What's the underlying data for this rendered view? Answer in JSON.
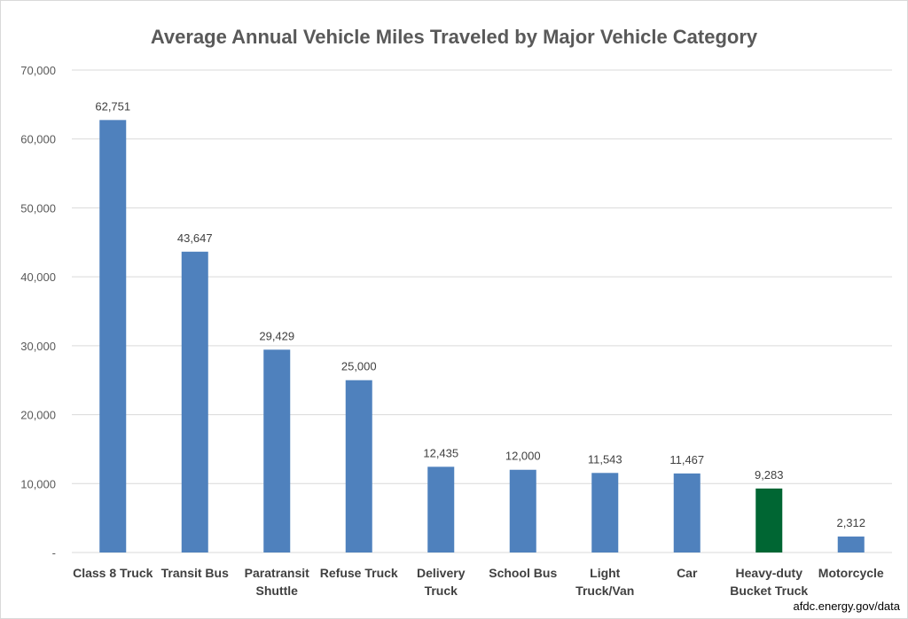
{
  "chart_data": {
    "type": "bar",
    "title": "Average Annual Vehicle Miles Traveled by Major Vehicle Category",
    "categories": [
      "Class 8 Truck",
      "Transit Bus",
      "Paratransit Shuttle",
      "Refuse Truck",
      "Delivery Truck",
      "School Bus",
      "Light Truck/Van",
      "Car",
      "Heavy-duty Bucket Truck",
      "Motorcycle"
    ],
    "category_lines": [
      [
        "Class 8 Truck"
      ],
      [
        "Transit Bus"
      ],
      [
        "Paratransit",
        "Shuttle"
      ],
      [
        "Refuse Truck"
      ],
      [
        "Delivery",
        "Truck"
      ],
      [
        "School Bus"
      ],
      [
        "Light",
        "Truck/Van"
      ],
      [
        "Car"
      ],
      [
        "Heavy-duty",
        "Bucket Truck"
      ],
      [
        "Motorcycle"
      ]
    ],
    "values": [
      62751,
      43647,
      29429,
      25000,
      12435,
      12000,
      11543,
      11467,
      9283,
      2312
    ],
    "value_labels": [
      "62,751",
      "43,647",
      "29,429",
      "25,000",
      "12,435",
      "12,000",
      "11,543",
      "11,467",
      "9,283",
      "2,312"
    ],
    "bar_colors": [
      "#4f81bd",
      "#4f81bd",
      "#4f81bd",
      "#4f81bd",
      "#4f81bd",
      "#4f81bd",
      "#4f81bd",
      "#4f81bd",
      "#006633",
      "#4f81bd"
    ],
    "yticks": [
      0,
      10000,
      20000,
      30000,
      40000,
      50000,
      60000,
      70000
    ],
    "ytick_labels": [
      "-",
      "10,000",
      "20,000",
      "30,000",
      "40,000",
      "50,000",
      "60,000",
      "70,000"
    ],
    "ylim": [
      0,
      70000
    ],
    "xlabel": "",
    "ylabel": "",
    "grid": true,
    "legend": "none"
  },
  "source_note": "afdc.energy.gov/data"
}
